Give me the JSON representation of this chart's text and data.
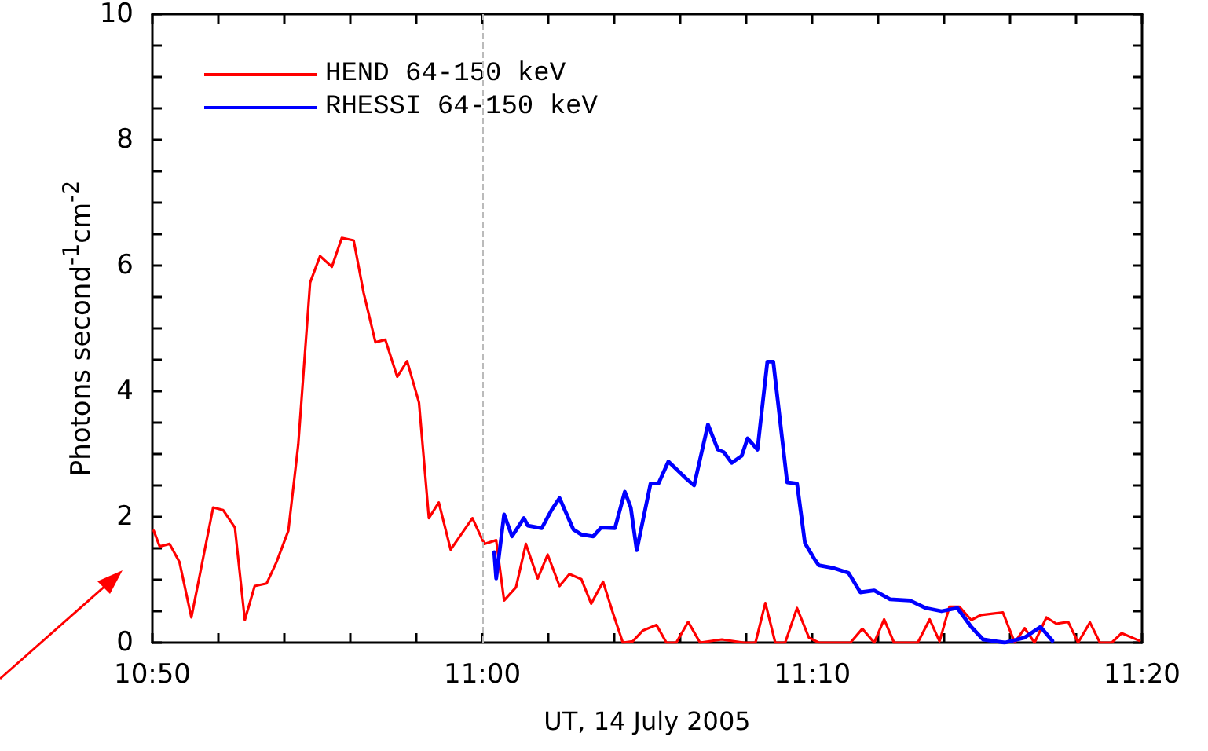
{
  "chart_data": {
    "type": "line",
    "xlabel": "UT, 14 July 2005",
    "ylabel": "Photons second$^{-1}$cm$^{-2}$",
    "xlim": [
      10.8333,
      11.3333
    ],
    "xticks": [
      {
        "value": 10.8333,
        "label": "10:50"
      },
      {
        "value": 10.8667,
        "label": null
      },
      {
        "value": 10.9,
        "label": null
      },
      {
        "value": 10.9333,
        "label": null
      },
      {
        "value": 10.9667,
        "label": null
      },
      {
        "value": 11,
        "label": "11:00"
      },
      {
        "value": 11.0333,
        "label": null
      },
      {
        "value": 11.0667,
        "label": null
      },
      {
        "value": 11.1,
        "label": null
      },
      {
        "value": 11.1333,
        "label": null
      },
      {
        "value": 11.1667,
        "label": "11:10"
      },
      {
        "value": 11.2,
        "label": null
      },
      {
        "value": 11.2333,
        "label": null
      },
      {
        "value": 11.2667,
        "label": null
      },
      {
        "value": 11.3,
        "label": null
      },
      {
        "value": 11.3333,
        "label": "11:20"
      }
    ],
    "ylim": [
      0,
      10
    ],
    "yticks": [
      0,
      {
        "value": 0.5,
        "label": null
      },
      {
        "value": 1,
        "label": null
      },
      {
        "value": 1.5,
        "label": null
      },
      2,
      {
        "value": 2.5,
        "label": null
      },
      {
        "value": 3,
        "label": null
      },
      {
        "value": 3.5,
        "label": null
      },
      4,
      {
        "value": 4.5,
        "label": null
      },
      {
        "value": 5,
        "label": null
      },
      {
        "value": 5.5,
        "label": null
      },
      6,
      {
        "value": 6.5,
        "label": null
      },
      {
        "value": 7,
        "label": null
      },
      {
        "value": 7.5,
        "label": null
      },
      8,
      {
        "value": 8.5,
        "label": null
      },
      {
        "value": 9,
        "label": null
      },
      {
        "value": 9.5,
        "label": null
      },
      10
    ],
    "grid": false,
    "legend": "top left",
    "marker": "none",
    "ref_lines": [
      {
        "axis": "x",
        "value": 11,
        "color": "#bbbbbb",
        "line_style": "dashed"
      }
    ],
    "series": [
      {
        "name": "HEND 64-150 keV",
        "color": "#ff0000",
        "x": [
          10.834,
          10.837,
          10.842,
          10.847,
          10.853,
          10.864,
          10.869,
          10.875,
          10.88,
          10.885,
          10.891,
          10.896,
          10.902,
          10.907,
          10.913,
          10.918,
          10.924,
          10.929,
          10.935,
          10.94,
          10.946,
          10.951,
          10.957,
          10.962,
          10.968,
          10.973,
          10.978,
          10.984,
          10.995,
          11.001,
          11.007,
          11.011,
          11.017,
          11.022,
          11.028,
          11.033,
          11.039,
          11.044,
          11.05,
          11.055,
          11.061,
          11.066,
          11.071,
          11.076,
          11.081,
          11.088,
          11.093,
          11.098,
          11.104,
          11.11,
          11.121,
          11.132,
          11.138,
          11.143,
          11.148,
          11.153,
          11.159,
          11.165,
          11.17,
          11.186,
          11.192,
          11.198,
          11.203,
          11.208,
          11.22,
          11.226,
          11.231,
          11.236,
          11.241,
          11.247,
          11.252,
          11.263,
          11.269,
          11.274,
          11.279,
          11.285,
          11.29,
          11.296,
          11.301,
          11.307,
          11.312,
          11.318,
          11.323,
          11.332
        ],
        "values": [
          1.78,
          1.53,
          1.57,
          1.28,
          0.4,
          2.15,
          2.11,
          1.83,
          0.36,
          0.9,
          0.94,
          1.28,
          1.78,
          3.15,
          5.73,
          6.15,
          5.98,
          6.44,
          6.4,
          5.57,
          4.78,
          4.82,
          4.23,
          4.48,
          3.82,
          1.98,
          2.23,
          1.48,
          1.98,
          1.57,
          1.63,
          0.67,
          0.88,
          1.57,
          1.02,
          1.4,
          0.9,
          1.09,
          1.01,
          0.62,
          0.97,
          0.47,
          0,
          0.02,
          0.19,
          0.28,
          0,
          0,
          0.33,
          0,
          0.05,
          0,
          0,
          0.63,
          0,
          0,
          0.55,
          0.08,
          0,
          0,
          0.22,
          0,
          0.37,
          0,
          0,
          0.37,
          0.02,
          0.57,
          0.57,
          0.36,
          0.44,
          0.48,
          0,
          0.23,
          0,
          0.4,
          0.3,
          0.33,
          0,
          0.32,
          0,
          0,
          0.15,
          0.03
        ]
      },
      {
        "name": "RHESSI 64-150 keV",
        "color": "#0000ff",
        "x": [
          11.006,
          11.007,
          11.011,
          11.015,
          11.021,
          11.023,
          11.03,
          11.035,
          11.039,
          11.046,
          11.05,
          11.056,
          11.06,
          11.067,
          11.072,
          11.075,
          11.078,
          11.085,
          11.089,
          11.094,
          11.103,
          11.107,
          11.114,
          11.119,
          11.122,
          11.126,
          11.131,
          11.134,
          11.139,
          11.144,
          11.147,
          11.154,
          11.159,
          11.163,
          11.168,
          11.17,
          11.177,
          11.185,
          11.191,
          11.198,
          11.206,
          11.216,
          11.224,
          11.232,
          11.24,
          11.247,
          11.253,
          11.264,
          11.274,
          11.282,
          11.288
        ],
        "values": [
          1.44,
          1.02,
          2.04,
          1.69,
          1.98,
          1.86,
          1.82,
          2.11,
          2.3,
          1.8,
          1.72,
          1.69,
          1.83,
          1.82,
          2.4,
          2.15,
          1.47,
          2.53,
          2.53,
          2.88,
          2.61,
          2.5,
          3.47,
          3.07,
          3.03,
          2.86,
          2.97,
          3.25,
          3.07,
          4.47,
          4.47,
          2.55,
          2.53,
          1.58,
          1.32,
          1.23,
          1.19,
          1.11,
          0.8,
          0.83,
          0.69,
          0.67,
          0.55,
          0.5,
          0.55,
          0.25,
          0.05,
          0,
          0.08,
          0.25,
          0.03
        ]
      }
    ]
  }
}
